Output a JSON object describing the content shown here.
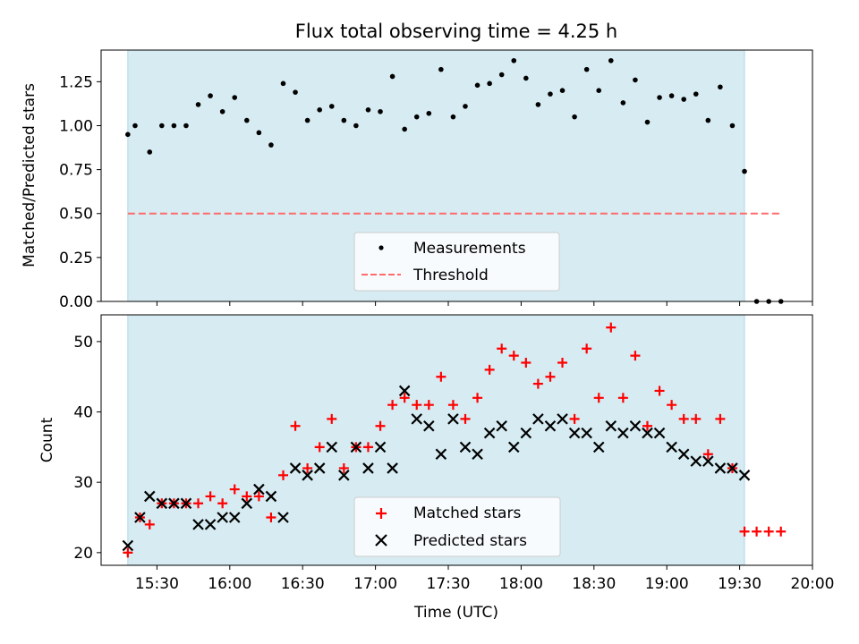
{
  "chart_data": [
    {
      "type": "scatter",
      "title": "Flux total observing time = 4.25 h",
      "ylabel": "Matched/Predicted stars",
      "ylim": [
        0,
        1.43
      ],
      "yticks": [
        "0.00",
        "0.25",
        "0.50",
        "0.75",
        "1.00",
        "1.25"
      ],
      "ytick_values": [
        0,
        0.25,
        0.5,
        0.75,
        1.0,
        1.25
      ],
      "grid": false,
      "legend_position": "bottom-center",
      "shaded_span": {
        "x": [
          "15:18",
          "19:32"
        ],
        "color": "#add8e6"
      },
      "series": [
        {
          "name": "Measurements",
          "marker": "dot",
          "color": "#000000",
          "x": [
            "15:18",
            "15:21",
            "15:27",
            "15:32",
            "15:37",
            "15:42",
            "15:47",
            "15:52",
            "15:57",
            "16:02",
            "16:07",
            "16:12",
            "16:17",
            "16:22",
            "16:27",
            "16:32",
            "16:37",
            "16:42",
            "16:47",
            "16:52",
            "16:57",
            "17:02",
            "17:07",
            "17:12",
            "17:17",
            "17:22",
            "17:27",
            "17:32",
            "17:37",
            "17:42",
            "17:47",
            "17:52",
            "17:57",
            "18:02",
            "18:07",
            "18:12",
            "18:17",
            "18:22",
            "18:27",
            "18:32",
            "18:37",
            "18:42",
            "18:47",
            "18:52",
            "18:57",
            "19:02",
            "19:07",
            "19:12",
            "19:17",
            "19:22",
            "19:27",
            "19:32",
            "19:37",
            "19:42",
            "19:47"
          ],
          "y": [
            0.95,
            1.0,
            0.85,
            1.0,
            1.0,
            1.0,
            1.12,
            1.17,
            1.08,
            1.16,
            1.03,
            0.96,
            0.89,
            1.24,
            1.19,
            1.03,
            1.09,
            1.11,
            1.03,
            1.0,
            1.09,
            1.08,
            1.28,
            0.98,
            1.05,
            1.07,
            1.32,
            1.05,
            1.11,
            1.23,
            1.24,
            1.29,
            1.37,
            1.27,
            1.12,
            1.18,
            1.2,
            1.05,
            1.32,
            1.2,
            1.37,
            1.13,
            1.26,
            1.02,
            1.16,
            1.17,
            1.15,
            1.18,
            1.03,
            1.22,
            1.0,
            0.74,
            0.0,
            0.0,
            0.0
          ]
        },
        {
          "name": "Threshold",
          "style": "dashed",
          "color": "#ff6b6b",
          "x": [
            "15:18",
            "19:47"
          ],
          "y": [
            0.5,
            0.5
          ]
        }
      ]
    },
    {
      "type": "scatter",
      "xlabel": "Time (UTC)",
      "ylabel": "Count",
      "ylim": [
        18.2,
        53.8
      ],
      "yticks": [
        "20",
        "30",
        "40",
        "50"
      ],
      "ytick_values": [
        20,
        30,
        40,
        50
      ],
      "xlim": [
        "15:07",
        "20:00"
      ],
      "xticks": [
        "15:30",
        "16:00",
        "16:30",
        "17:00",
        "17:30",
        "18:00",
        "18:30",
        "19:00",
        "19:30",
        "20:00"
      ],
      "grid": false,
      "legend_position": "bottom-center",
      "shaded_span": {
        "x": [
          "15:18",
          "19:32"
        ],
        "color": "#add8e6"
      },
      "series": [
        {
          "name": "Matched stars",
          "marker": "plus",
          "color": "#ff0000",
          "x": [
            "15:18",
            "15:23",
            "15:27",
            "15:32",
            "15:37",
            "15:42",
            "15:47",
            "15:52",
            "15:57",
            "16:02",
            "16:07",
            "16:12",
            "16:17",
            "16:22",
            "16:27",
            "16:32",
            "16:37",
            "16:42",
            "16:47",
            "16:52",
            "16:57",
            "17:02",
            "17:07",
            "17:12",
            "17:17",
            "17:22",
            "17:27",
            "17:32",
            "17:37",
            "17:42",
            "17:47",
            "17:52",
            "17:57",
            "18:02",
            "18:07",
            "18:12",
            "18:17",
            "18:22",
            "18:27",
            "18:32",
            "18:37",
            "18:42",
            "18:47",
            "18:52",
            "18:57",
            "19:02",
            "19:07",
            "19:12",
            "19:17",
            "19:22",
            "19:27",
            "19:32",
            "19:37",
            "19:42",
            "19:47"
          ],
          "y": [
            20,
            25,
            24,
            27,
            27,
            27,
            27,
            28,
            27,
            29,
            28,
            28,
            25,
            31,
            38,
            32,
            35,
            39,
            32,
            35,
            35,
            38,
            41,
            42,
            41,
            41,
            45,
            41,
            39,
            42,
            46,
            49,
            48,
            47,
            44,
            45,
            47,
            39,
            49,
            42,
            52,
            42,
            48,
            38,
            43,
            41,
            39,
            39,
            34,
            39,
            32,
            23,
            23,
            23,
            23
          ]
        },
        {
          "name": "Predicted stars",
          "marker": "x",
          "color": "#000000",
          "x": [
            "15:18",
            "15:23",
            "15:27",
            "15:32",
            "15:37",
            "15:42",
            "15:47",
            "15:52",
            "15:57",
            "16:02",
            "16:07",
            "16:12",
            "16:17",
            "16:22",
            "16:27",
            "16:32",
            "16:37",
            "16:42",
            "16:47",
            "16:52",
            "16:57",
            "17:02",
            "17:07",
            "17:12",
            "17:17",
            "17:22",
            "17:27",
            "17:32",
            "17:37",
            "17:42",
            "17:47",
            "17:52",
            "17:57",
            "18:02",
            "18:07",
            "18:12",
            "18:17",
            "18:22",
            "18:27",
            "18:32",
            "18:37",
            "18:42",
            "18:47",
            "18:52",
            "18:57",
            "19:02",
            "19:07",
            "19:12",
            "19:17",
            "19:22",
            "19:27",
            "19:32"
          ],
          "y": [
            21,
            25,
            28,
            27,
            27,
            27,
            24,
            24,
            25,
            25,
            27,
            29,
            28,
            25,
            32,
            31,
            32,
            35,
            31,
            35,
            32,
            35,
            32,
            43,
            39,
            38,
            34,
            39,
            35,
            34,
            37,
            38,
            35,
            37,
            39,
            38,
            39,
            37,
            37,
            35,
            38,
            37,
            38,
            37,
            37,
            35,
            34,
            33,
            33,
            32,
            32,
            31
          ]
        }
      ]
    }
  ]
}
